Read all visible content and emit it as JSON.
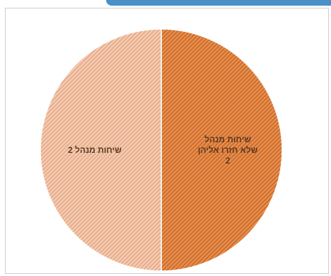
{
  "chart_data": {
    "type": "pie",
    "title": "",
    "slices": [
      {
        "label": "שיחות מנהל שלא חזרו אליהן",
        "value": 2,
        "color": "#e8914e",
        "stripe_color": "#c8662a"
      },
      {
        "label": "שיחות מנהל",
        "value": 2,
        "color": "#f3cdb5",
        "stripe_color": "#e7a682"
      }
    ],
    "start_angle_deg": 0,
    "direction": "clockwise",
    "data_labels_show_value": true,
    "legend": "none"
  },
  "colors": {
    "window_accent": "#4a90c8",
    "frame_border": "#cfcfcf",
    "label_color": "#5a3a24"
  }
}
